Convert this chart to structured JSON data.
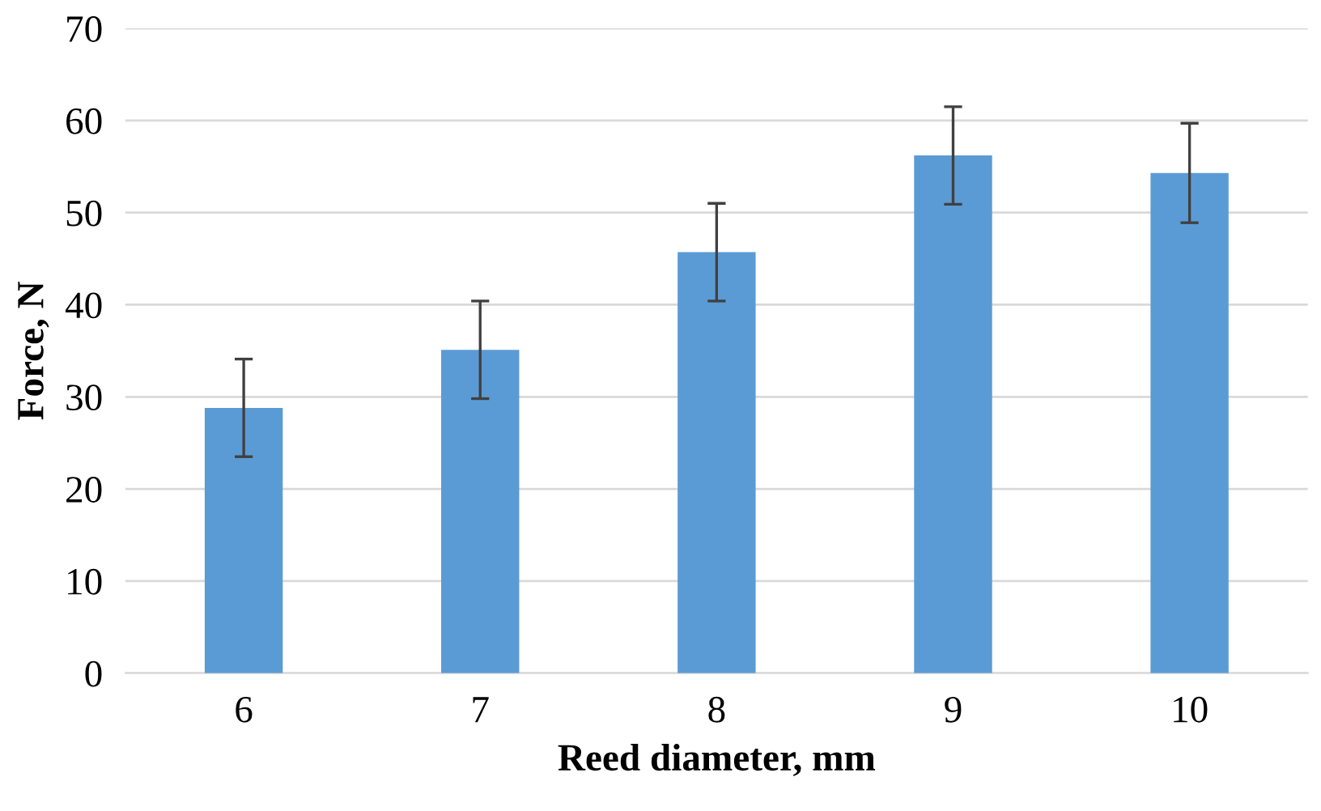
{
  "chart_data": {
    "type": "bar",
    "xlabel": "Reed diameter, mm",
    "ylabel": "Force, N",
    "categories": [
      "6",
      "7",
      "8",
      "9",
      "10"
    ],
    "values": [
      28.8,
      35.1,
      45.7,
      56.2,
      54.3
    ],
    "errors": [
      5.3,
      5.3,
      5.3,
      5.3,
      5.4
    ],
    "color": "#5b9bd5",
    "ylim": [
      0,
      70
    ],
    "yticks": [
      0,
      10,
      20,
      30,
      40,
      50,
      60,
      70
    ],
    "grid": "y"
  }
}
